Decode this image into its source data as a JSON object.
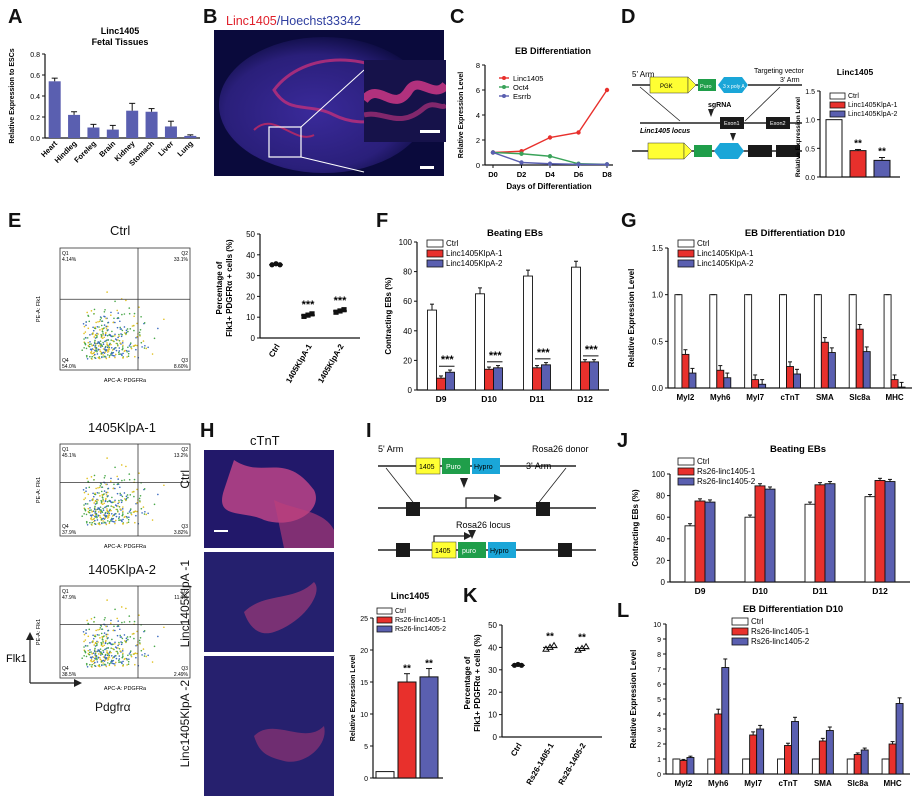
{
  "letters": {
    "A": "A",
    "B": "B",
    "C": "C",
    "D": "D",
    "E": "E",
    "F": "F",
    "G": "G",
    "H": "H",
    "I": "I",
    "J": "J",
    "K": "K",
    "L": "L"
  },
  "colors": {
    "ctrl": "#ffffff",
    "red": "#e8302c",
    "blue": "#5a5fb0",
    "green": "#3aa35a",
    "yellow": "#ffff33",
    "puro": "#1f9e4a",
    "cyan": "#1aa6d8",
    "dark": "#222222"
  },
  "panelB": {
    "title_red": "Linc1405",
    "title_sep": "/",
    "title_blue": "Hoechst33342"
  },
  "panelD": {
    "arm5": "5' Arm",
    "arm3": "3' Arm",
    "pgk": "PGK",
    "puro": "Puro",
    "polyA": "3 x poly A",
    "targeting": "Targeting vector",
    "sgRNA": "sgRNA",
    "locus": "Linc1405 locus",
    "exon1": "Exon1",
    "exon2": "Exon2"
  },
  "panelE": {
    "title_ctrl": "Ctrl",
    "title_k1": "1405KlpA-1",
    "title_k2": "1405KlpA-2",
    "xaxis": "APC-A: PDGFRa",
    "yaxis": "PE-A: Flk1",
    "ctrl": {
      "q1": "Q1\n4.14%",
      "q2": "Q2\n33.1%",
      "q3": "Q3\n8.60%",
      "q4": "Q4\n54.0%"
    },
    "k1": {
      "q1": "Q1\n45.1%",
      "q2": "Q2\n13.2%",
      "q3": "Q3\n3.82%",
      "q4": "Q4\n37.9%"
    },
    "k2": {
      "q1": "Q1\n47.9%",
      "q2": "Q2\n11.1%",
      "q3": "Q3\n2.49%",
      "q4": "Q4\n38.5%"
    },
    "axis_y": "Flk1",
    "axis_x": "Pdgfrα"
  },
  "panelH": {
    "title": "cTnT",
    "ctrl": "Ctrl",
    "k1": "Linc1405KlpA -1",
    "k2": "Linc1405KlpA -2"
  },
  "panelI": {
    "arm5": "5' Arm",
    "arm3": "3' Arm",
    "donor": "Rosa26 donor",
    "lnc": "1405",
    "puro": "Puro",
    "hypro": "Hypro",
    "locus": "Rosa26 locus",
    "puro2": "puro"
  },
  "chart_data": [
    {
      "id": "A",
      "type": "bar",
      "title": "Linc1405\nFetal Tissues",
      "ylabel": "Relative Expression to ESCs",
      "ylim": [
        0,
        0.8
      ],
      "yticks": [
        "0.0",
        "0.2",
        "0.4",
        "0.6",
        "0.8"
      ],
      "categories": [
        "Heart",
        "Hindleg",
        "Foreleg",
        "Brain",
        "Kidney",
        "Stomach",
        "Liver",
        "Lung"
      ],
      "values": [
        0.54,
        0.22,
        0.1,
        0.08,
        0.26,
        0.25,
        0.11,
        0.02
      ],
      "errors": [
        0.03,
        0.03,
        0.03,
        0.04,
        0.07,
        0.03,
        0.05,
        0.01
      ]
    },
    {
      "id": "C",
      "type": "line",
      "title": "EB Differentiation",
      "xlabel": "Days of Differentiation",
      "ylabel": "Relative Expression Level",
      "ylim": [
        0,
        8
      ],
      "yticks": [
        "0",
        "2",
        "4",
        "6",
        "8"
      ],
      "x": [
        "D0",
        "D2",
        "D4",
        "D6",
        "D8"
      ],
      "series": [
        {
          "name": "Linc1405",
          "values": [
            1.0,
            1.1,
            2.2,
            2.6,
            6.0
          ]
        },
        {
          "name": "Oct4",
          "values": [
            1.0,
            0.9,
            0.7,
            0.1,
            0.05
          ]
        },
        {
          "name": "Esrrb",
          "values": [
            1.0,
            0.2,
            0.1,
            0.05,
            0.05
          ]
        }
      ]
    },
    {
      "id": "D",
      "type": "bar",
      "title": "Linc1405",
      "ylabel": "Relative Expression Level",
      "ylim": [
        0,
        1.5
      ],
      "yticks": [
        "0.0",
        "0.5",
        "1.0",
        "1.5"
      ],
      "categories": [
        "Ctrl",
        "Linc1405KlpA-1",
        "Linc1405KlpA-2"
      ],
      "values": [
        1.0,
        0.46,
        0.29
      ],
      "errors": [
        0,
        0.02,
        0.05
      ],
      "stars": [
        "",
        "**",
        "**"
      ]
    },
    {
      "id": "E",
      "type": "scatter",
      "ylabel": "Percentage of\nFlk1+ PDGFRα + cells (%)",
      "ylim": [
        0,
        50
      ],
      "yticks": [
        "0",
        "10",
        "20",
        "30",
        "40",
        "50"
      ],
      "categories": [
        "Ctrl",
        "1405KlpA-1",
        "1405KlpA-2"
      ],
      "values": [
        35.2,
        11.0,
        13.0
      ],
      "stars": [
        "",
        "***",
        "***"
      ]
    },
    {
      "id": "F",
      "type": "bar",
      "title": "Beating  EBs",
      "ylabel": "Contracting EBs (%)",
      "ylim": [
        0,
        100
      ],
      "yticks": [
        "0",
        "20",
        "40",
        "60",
        "80",
        "100"
      ],
      "categories": [
        "D9",
        "D10",
        "D11",
        "D12"
      ],
      "series": [
        {
          "name": "Ctrl",
          "values": [
            54,
            65,
            77,
            83
          ]
        },
        {
          "name": "Linc1405KlpA-1",
          "values": [
            8,
            14,
            15,
            19
          ]
        },
        {
          "name": "Linc1405KlpA-2",
          "values": [
            12,
            15,
            17,
            19
          ]
        }
      ],
      "stars": [
        "***",
        "***",
        "***",
        "***"
      ]
    },
    {
      "id": "G",
      "type": "bar",
      "title": "EB Differentiation D10",
      "ylabel": "Relative Expression Level",
      "ylim": [
        0,
        1.5
      ],
      "yticks": [
        "0.0",
        "0.5",
        "1.0",
        "1.5"
      ],
      "categories": [
        "Myl2",
        "Myh6",
        "Myl7",
        "cTnT",
        "SMA",
        "Slc8a",
        "MHC"
      ],
      "series": [
        {
          "name": "Ctrl",
          "values": [
            1,
            1,
            1,
            1,
            1,
            1,
            1
          ]
        },
        {
          "name": "Linc1405KlpA-1",
          "values": [
            0.36,
            0.19,
            0.09,
            0.23,
            0.49,
            0.63,
            0.09
          ]
        },
        {
          "name": "Linc1405KlpA-2",
          "values": [
            0.16,
            0.11,
            0.04,
            0.15,
            0.38,
            0.39,
            0.01
          ]
        }
      ]
    },
    {
      "id": "Hbar",
      "type": "bar",
      "title": "Linc1405",
      "ylabel": "Relative Expression Level",
      "ylim": [
        0,
        25
      ],
      "yticks": [
        "0",
        "5",
        "10",
        "15",
        "20",
        "25"
      ],
      "series": [
        {
          "name": "Ctrl",
          "values": [
            1
          ]
        },
        {
          "name": "Rs26-linc1405-1",
          "values": [
            15
          ]
        },
        {
          "name": "Rs26-linc1405-2",
          "values": [
            15.8
          ]
        }
      ],
      "stars": [
        "",
        "**",
        "**"
      ]
    },
    {
      "id": "J",
      "type": "bar",
      "title": "Beating  EBs",
      "ylabel": "Contracting  EBs (%)",
      "ylim": [
        0,
        100
      ],
      "yticks": [
        "0",
        "20",
        "40",
        "60",
        "80",
        "100"
      ],
      "categories": [
        "D9",
        "D10",
        "D11",
        "D12"
      ],
      "series": [
        {
          "name": "Ctrl",
          "values": [
            52,
            60,
            72,
            79
          ]
        },
        {
          "name": "Rs26-linc1405-1",
          "values": [
            75,
            89,
            90,
            94
          ]
        },
        {
          "name": "Rs26-linc1405-2",
          "values": [
            74,
            86,
            91,
            93
          ]
        }
      ]
    },
    {
      "id": "K",
      "type": "scatter",
      "ylabel": "Percentage of\nFlk1+ PDGFRα + cells (%)",
      "ylim": [
        0,
        50
      ],
      "yticks": [
        "0",
        "10",
        "20",
        "30",
        "40",
        "50"
      ],
      "categories": [
        "Ctrl",
        "Rs26-1405-1",
        "Rs26-1405-2"
      ],
      "values": [
        32,
        40,
        39.5
      ],
      "stars": [
        "",
        "**",
        "**"
      ]
    },
    {
      "id": "L",
      "type": "bar",
      "title": "EB Differentiation D10",
      "ylabel": "Relative Expression Level",
      "ylim": [
        0,
        10
      ],
      "yticks": [
        "0",
        "1",
        "2",
        "3",
        "4",
        "5",
        "6",
        "7",
        "8",
        "9",
        "10"
      ],
      "categories": [
        "Myl2",
        "Myh6",
        "Myl7",
        "cTnT",
        "SMA",
        "Slc8a",
        "MHC"
      ],
      "series": [
        {
          "name": "Ctrl",
          "values": [
            1,
            1,
            1,
            1,
            1,
            1,
            1
          ]
        },
        {
          "name": "Rs26-linc1405-1",
          "values": [
            0.9,
            4.0,
            2.6,
            1.9,
            2.2,
            1.3,
            2.0
          ]
        },
        {
          "name": "Rs26-linc1405-2",
          "values": [
            1.1,
            7.1,
            3.0,
            3.5,
            2.9,
            1.6,
            4.7
          ]
        }
      ]
    }
  ]
}
